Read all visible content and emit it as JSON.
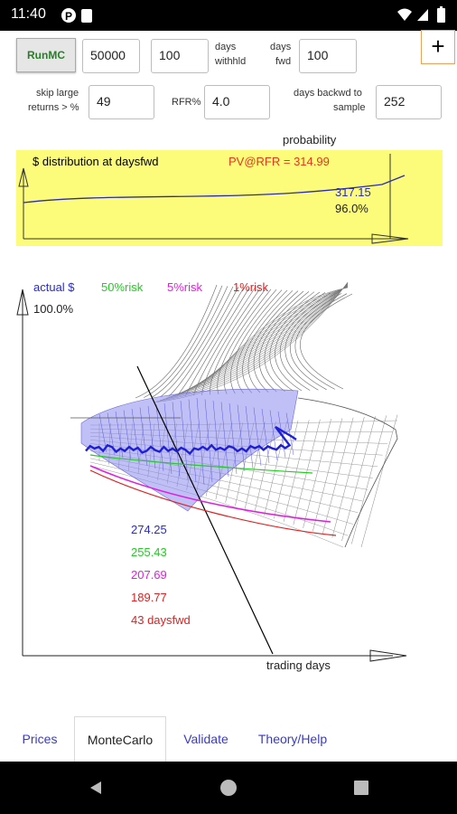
{
  "statusbar": {
    "time": "11:40"
  },
  "controls": {
    "run_label": "RunMC",
    "plus_label": "+",
    "amount_value": "50000",
    "withhold_value": "100",
    "withhold_label_1": "days",
    "withhold_label_2": "withhld",
    "fwd_label_1": "days",
    "fwd_label_2": "fwd",
    "fwd_value": "100",
    "skip_label_1": "skip large",
    "skip_label_2": "returns > %",
    "skip_value": "49",
    "rfr_label": "RFR%",
    "rfr_value": "4.0",
    "backwd_label_1": "days backwd to",
    "backwd_label_2": "sample",
    "backwd_value": "252"
  },
  "distribution_panel": {
    "probability_label": "probability",
    "title": "$ distribution at daysfwd",
    "pv_label": "PV@RFR = 314.99",
    "value_label": "317.15",
    "percent_label": "96.0%",
    "colors": {
      "background": "#fcfc7a",
      "title": "#2a2ab8",
      "pv": "#e03a1a",
      "value": "#2a2ab8"
    }
  },
  "montecarlo_chart": {
    "legend": [
      {
        "label": "actual $",
        "color": "#2a2ad0"
      },
      {
        "label": "50%risk",
        "color": "#22cc22"
      },
      {
        "label": "5%risk",
        "color": "#e020e0"
      },
      {
        "label": "1%risk",
        "color": "#e02020"
      }
    ],
    "top_percent": "100.0%",
    "values": [
      {
        "label": "274.25",
        "color": "#2a2ad0"
      },
      {
        "label": "255.43",
        "color": "#22cc22"
      },
      {
        "label": "207.69",
        "color": "#e020e0"
      },
      {
        "label": "189.77",
        "color": "#e02020"
      },
      {
        "label": "43 daysfwd",
        "color": "#e02020"
      }
    ],
    "xaxis_label": "trading days"
  },
  "tabs": [
    {
      "label": "Prices"
    },
    {
      "label": "MonteCarlo"
    },
    {
      "label": "Validate"
    },
    {
      "label": "Theory/Help"
    }
  ]
}
